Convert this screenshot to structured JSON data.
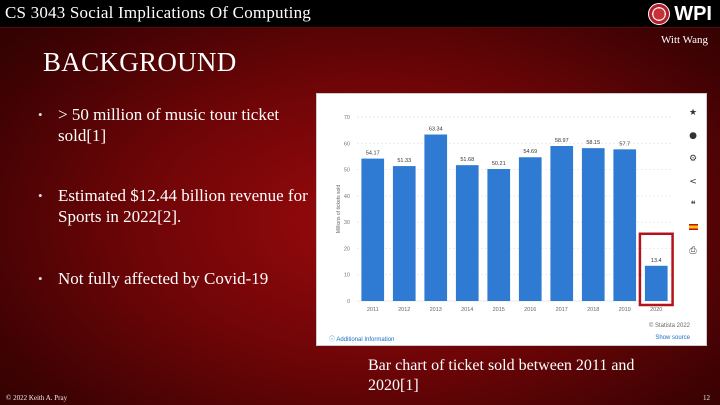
{
  "header": {
    "course": "CS 3043 Social Implications Of Computing",
    "logo_text": "WPI"
  },
  "author": "Witt Wang",
  "slide_title": "BACKGROUND",
  "bullets": [
    "> 50 million of music tour ticket sold[1]",
    "Estimated $12.44 billion revenue for Sports in 2022[2].",
    "Not fully affected by Covid-19"
  ],
  "chart_panel": {
    "footer_left": "Additional Information",
    "footer_right_top": "© Statista 2022",
    "footer_right_bottom": "Show source",
    "side_icons": [
      "star-icon",
      "bell-icon",
      "gear-icon",
      "share-icon",
      "quote-icon",
      "flag-icon",
      "print-icon"
    ]
  },
  "chart_data": {
    "type": "bar",
    "categories": [
      "2011",
      "2012",
      "2013",
      "2014",
      "2015",
      "2016",
      "2017",
      "2018",
      "2019",
      "2020"
    ],
    "values": [
      54.17,
      51.33,
      63.34,
      51.68,
      50.21,
      54.69,
      58.97,
      58.15,
      57.7,
      13.4
    ],
    "value_labels": [
      "54.17",
      "51.33",
      "63.34",
      "51.68",
      "50.21",
      "54.69",
      "58.97",
      "58.15",
      "57.7",
      "13.4"
    ],
    "title": "",
    "xlabel": "",
    "ylabel": "Millions of tickets sold",
    "ylim": [
      0,
      70
    ],
    "yticks": [
      0,
      10,
      20,
      30,
      40,
      50,
      60,
      70
    ],
    "grid": true,
    "highlight_category": "2020",
    "colors": {
      "bar": "#2f7bd3",
      "highlight_box": "#b3121b"
    }
  },
  "caption": "Bar chart of ticket sold between 2011 and 2020[1]",
  "footer": {
    "copyright": "© 2022 Keith A. Pray",
    "page_number": "12"
  }
}
